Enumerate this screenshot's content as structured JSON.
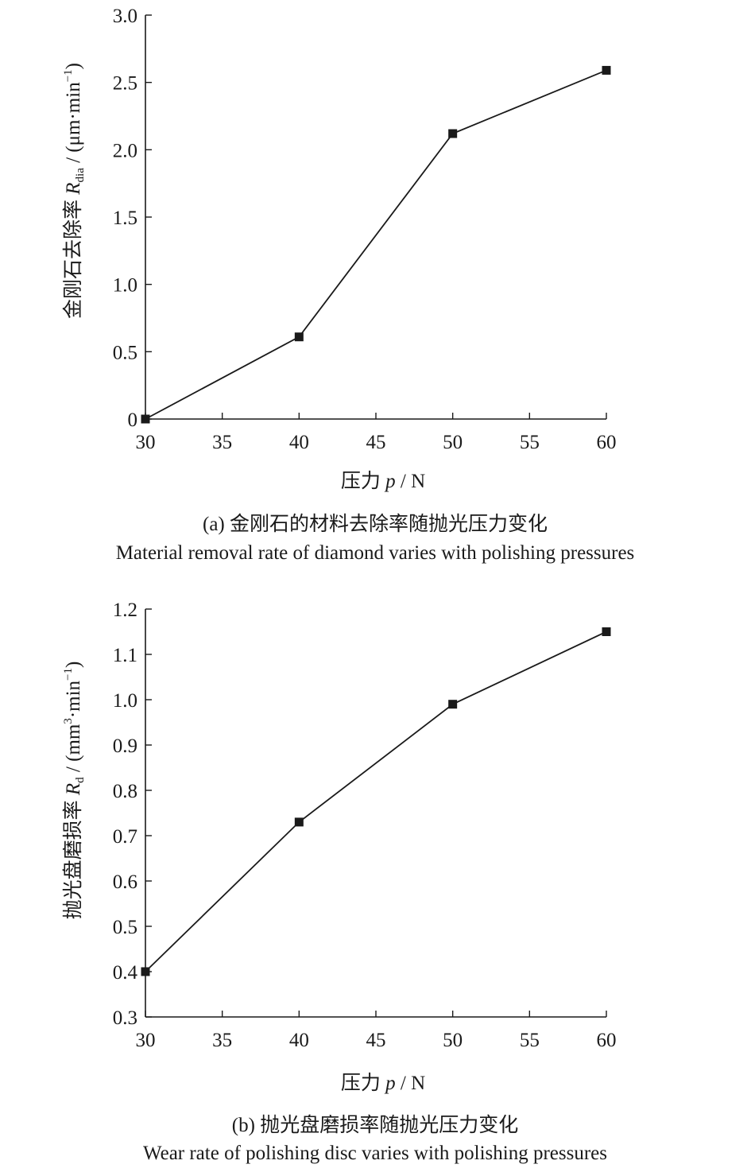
{
  "chart_data": [
    {
      "type": "line",
      "x": [
        30,
        40,
        50,
        60
      ],
      "values": [
        0,
        0.61,
        2.12,
        2.59
      ],
      "xlim": [
        30,
        60
      ],
      "ylim": [
        0,
        3.0
      ],
      "xticks": [
        "30",
        "35",
        "40",
        "45",
        "50",
        "55",
        "60"
      ],
      "yticks": [
        "0",
        "0.5",
        "1.0",
        "1.5",
        "2.0",
        "2.5",
        "3.0"
      ],
      "xlabel": {
        "prefix": "压力 ",
        "symbol": "p",
        "unit": " / N"
      },
      "ylabel": {
        "prefix": "金刚石去除率 ",
        "symbol": "R",
        "subscript": "dia",
        "unit": " / (μm·min",
        "superscript": "−1",
        "close": ")"
      },
      "caption_cn": "(a) 金刚石的材料去除率随抛光压力变化",
      "caption_en": "Material removal rate of diamond varies with polishing pressures",
      "marker": "square",
      "grid": false,
      "color": "#1a1a1a"
    },
    {
      "type": "line",
      "x": [
        30,
        40,
        50,
        60
      ],
      "values": [
        0.4,
        0.73,
        0.99,
        1.15
      ],
      "xlim": [
        30,
        60
      ],
      "ylim": [
        0.3,
        1.2
      ],
      "xticks": [
        "30",
        "35",
        "40",
        "45",
        "50",
        "55",
        "60"
      ],
      "yticks": [
        "0.3",
        "0.4",
        "0.5",
        "0.6",
        "0.7",
        "0.8",
        "0.9",
        "1.0",
        "1.1",
        "1.2"
      ],
      "xlabel": {
        "prefix": "压力 ",
        "symbol": "p",
        "unit": " / N"
      },
      "ylabel": {
        "prefix": "抛光盘磨损率 ",
        "symbol": "R",
        "subscript": "d",
        "unit": " / (mm",
        "superscript": "3",
        "unit2": "·min",
        "superscript2": "−1",
        "close": ")"
      },
      "caption_cn": "(b) 抛光盘磨损率随抛光压力变化",
      "caption_en": "Wear rate of polishing disc varies with polishing pressures",
      "marker": "square",
      "grid": false,
      "color": "#1a1a1a"
    }
  ]
}
